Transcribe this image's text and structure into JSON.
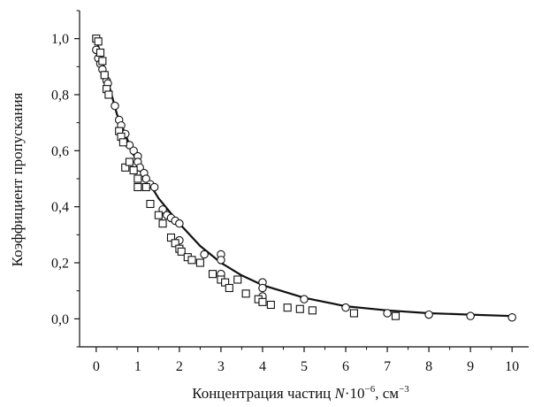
{
  "chart_data": {
    "type": "scatter",
    "xlabel_parts": {
      "prefix": "Концентрация частиц ",
      "var": "N",
      "mid": "·10",
      "exp1": "−6",
      "unit": ", см",
      "exp2": "−3"
    },
    "ylabel": "Коэффициент пропускания",
    "xlim": [
      -0.4,
      10.4
    ],
    "ylim": [
      -0.1,
      1.1
    ],
    "x_ticks": [
      0,
      1,
      2,
      3,
      4,
      5,
      6,
      7,
      8,
      9,
      10
    ],
    "x_tick_labels": [
      "0",
      "1",
      "2",
      "3",
      "4",
      "5",
      "6",
      "7",
      "8",
      "9",
      "10"
    ],
    "y_ticks": [
      0,
      0.2,
      0.4,
      0.6,
      0.8,
      1.0
    ],
    "y_tick_labels": [
      "0,0",
      "0,2",
      "0,4",
      "0,6",
      "0,8",
      "1,0"
    ],
    "grid": false,
    "legend": "none",
    "series": [
      {
        "marker": "circle",
        "points": [
          [
            0.0,
            0.96
          ],
          [
            0.05,
            0.93
          ],
          [
            0.1,
            0.91
          ],
          [
            0.15,
            0.89
          ],
          [
            0.2,
            0.87
          ],
          [
            0.25,
            0.85
          ],
          [
            0.28,
            0.84
          ],
          [
            0.45,
            0.76
          ],
          [
            0.55,
            0.71
          ],
          [
            0.6,
            0.69
          ],
          [
            0.7,
            0.66
          ],
          [
            0.8,
            0.62
          ],
          [
            0.9,
            0.6
          ],
          [
            1.0,
            0.58
          ],
          [
            1.0,
            0.56
          ],
          [
            1.05,
            0.54
          ],
          [
            1.15,
            0.52
          ],
          [
            1.2,
            0.5
          ],
          [
            1.3,
            0.48
          ],
          [
            1.4,
            0.47
          ],
          [
            1.6,
            0.39
          ],
          [
            1.7,
            0.37
          ],
          [
            1.8,
            0.36
          ],
          [
            1.9,
            0.35
          ],
          [
            2.0,
            0.34
          ],
          [
            2.0,
            0.28
          ],
          [
            2.6,
            0.23
          ],
          [
            3.0,
            0.23
          ],
          [
            3.0,
            0.21
          ],
          [
            3.0,
            0.16
          ],
          [
            4.0,
            0.13
          ],
          [
            4.0,
            0.11
          ],
          [
            4.0,
            0.08
          ],
          [
            5.0,
            0.07
          ],
          [
            6.0,
            0.04
          ],
          [
            7.0,
            0.02
          ],
          [
            8.0,
            0.015
          ],
          [
            9.0,
            0.01
          ],
          [
            10.0,
            0.005
          ]
        ]
      },
      {
        "marker": "square",
        "points": [
          [
            0.0,
            1.0
          ],
          [
            0.05,
            0.99
          ],
          [
            0.1,
            0.95
          ],
          [
            0.15,
            0.92
          ],
          [
            0.2,
            0.87
          ],
          [
            0.25,
            0.82
          ],
          [
            0.3,
            0.8
          ],
          [
            0.55,
            0.67
          ],
          [
            0.6,
            0.65
          ],
          [
            0.65,
            0.63
          ],
          [
            0.7,
            0.54
          ],
          [
            0.8,
            0.56
          ],
          [
            0.9,
            0.53
          ],
          [
            1.0,
            0.5
          ],
          [
            1.0,
            0.47
          ],
          [
            1.2,
            0.47
          ],
          [
            1.3,
            0.41
          ],
          [
            1.5,
            0.37
          ],
          [
            1.6,
            0.34
          ],
          [
            1.8,
            0.29
          ],
          [
            1.9,
            0.27
          ],
          [
            2.0,
            0.25
          ],
          [
            2.05,
            0.24
          ],
          [
            2.2,
            0.22
          ],
          [
            2.3,
            0.21
          ],
          [
            2.5,
            0.2
          ],
          [
            2.8,
            0.16
          ],
          [
            3.0,
            0.14
          ],
          [
            3.1,
            0.13
          ],
          [
            3.2,
            0.11
          ],
          [
            3.4,
            0.14
          ],
          [
            3.6,
            0.09
          ],
          [
            3.9,
            0.07
          ],
          [
            4.0,
            0.06
          ],
          [
            4.2,
            0.05
          ],
          [
            4.6,
            0.04
          ],
          [
            4.9,
            0.035
          ],
          [
            5.2,
            0.03
          ],
          [
            6.2,
            0.02
          ],
          [
            7.2,
            0.01
          ]
        ]
      },
      {
        "marker": "line",
        "points": [
          [
            0.0,
            1.0
          ],
          [
            0.5,
            0.73
          ],
          [
            1.0,
            0.55
          ],
          [
            1.5,
            0.43
          ],
          [
            2.0,
            0.34
          ],
          [
            2.5,
            0.26
          ],
          [
            3.0,
            0.2
          ],
          [
            3.5,
            0.155
          ],
          [
            4.0,
            0.12
          ],
          [
            5.0,
            0.075
          ],
          [
            6.0,
            0.045
          ],
          [
            7.0,
            0.03
          ],
          [
            8.0,
            0.02
          ],
          [
            9.0,
            0.015
          ],
          [
            10.0,
            0.01
          ]
        ]
      }
    ]
  }
}
